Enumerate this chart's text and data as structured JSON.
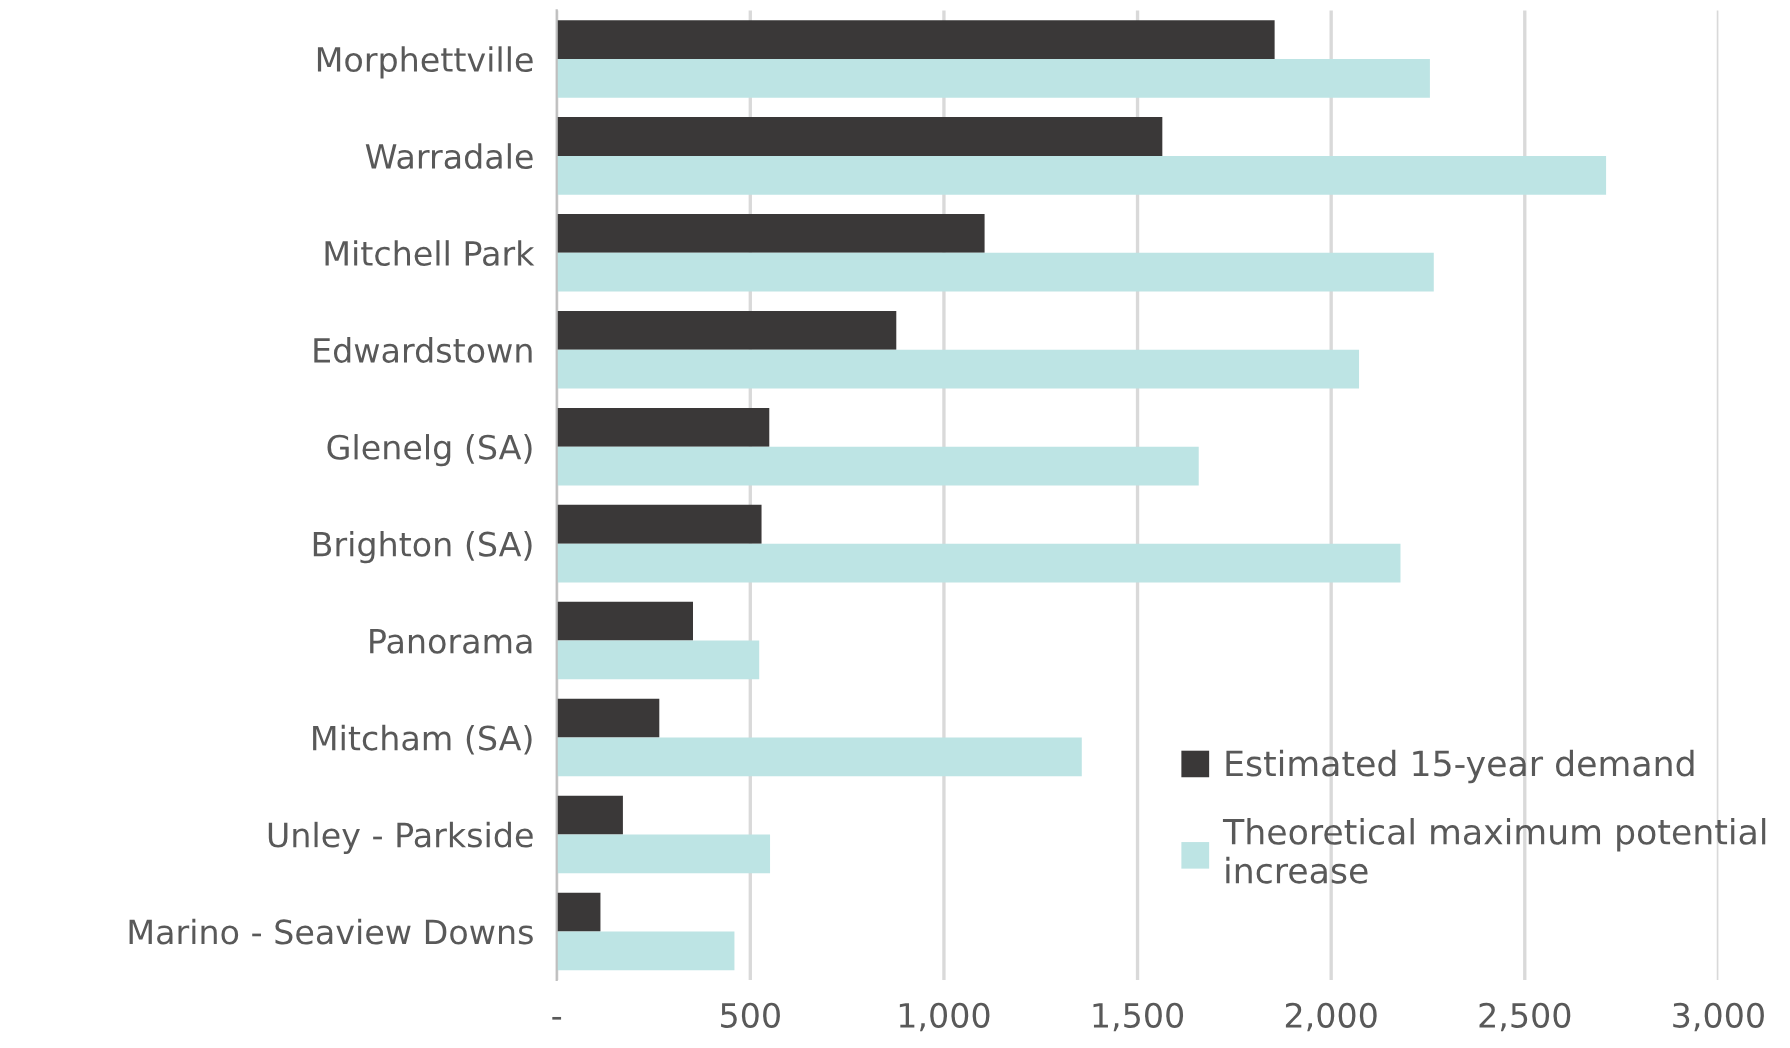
{
  "chart_data": {
    "type": "bar",
    "orientation": "horizontal",
    "categories": [
      "Morphettville",
      "Warradale",
      "Mitchell Park",
      "Edwardstown",
      "Glenelg (SA)",
      "Brighton (SA)",
      "Panorama",
      "Mitcham (SA)",
      "Unley - Parkside",
      "Marino - Seaview Downs"
    ],
    "series": [
      {
        "name": "Estimated 15-year demand",
        "color": "#3a3838",
        "values": [
          1854,
          1564,
          1105,
          877,
          549,
          529,
          352,
          265,
          171,
          113
        ]
      },
      {
        "name": "Theoretical maximum potential increase",
        "color": "#bde4e4",
        "values": [
          2255,
          2710,
          2265,
          2072,
          1658,
          2179,
          523,
          1356,
          551,
          459
        ]
      }
    ],
    "xlim": [
      0,
      3000
    ],
    "xticks": [
      {
        "value": 0,
        "label": "-"
      },
      {
        "value": 500,
        "label": "500"
      },
      {
        "value": 1000,
        "label": "1,000"
      },
      {
        "value": 1500,
        "label": "1,500"
      },
      {
        "value": 2000,
        "label": "2,000"
      },
      {
        "value": 2500,
        "label": "2,500"
      },
      {
        "value": 3000,
        "label": "3,000"
      }
    ],
    "grid": "x",
    "legend": "bottom right"
  }
}
